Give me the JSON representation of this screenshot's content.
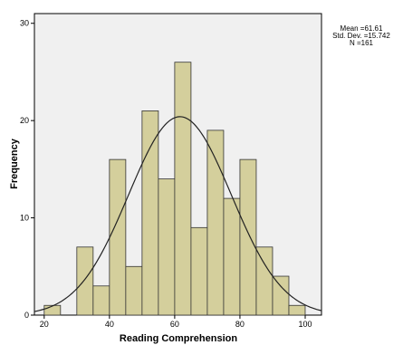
{
  "chart_data": {
    "type": "bar",
    "title": "",
    "xlabel": "Reading Comprehension",
    "ylabel": "Frequency",
    "xlim": [
      17,
      105
    ],
    "ylim": [
      0,
      31
    ],
    "x_ticks": [
      20,
      40,
      60,
      80,
      100
    ],
    "y_ticks": [
      0,
      10,
      20,
      30
    ],
    "bin_width": 5,
    "bins": [
      {
        "start": 20,
        "end": 25,
        "count": 1
      },
      {
        "start": 30,
        "end": 35,
        "count": 7
      },
      {
        "start": 35,
        "end": 40,
        "count": 3
      },
      {
        "start": 40,
        "end": 45,
        "count": 16
      },
      {
        "start": 45,
        "end": 50,
        "count": 5
      },
      {
        "start": 50,
        "end": 55,
        "count": 21
      },
      {
        "start": 55,
        "end": 60,
        "count": 14
      },
      {
        "start": 60,
        "end": 65,
        "count": 26
      },
      {
        "start": 65,
        "end": 70,
        "count": 9
      },
      {
        "start": 70,
        "end": 75,
        "count": 19
      },
      {
        "start": 75,
        "end": 80,
        "count": 12
      },
      {
        "start": 80,
        "end": 85,
        "count": 16
      },
      {
        "start": 85,
        "end": 90,
        "count": 7
      },
      {
        "start": 90,
        "end": 95,
        "count": 4
      },
      {
        "start": 95,
        "end": 100,
        "count": 1
      }
    ],
    "normal_curve": {
      "mean": 61.61,
      "sd": 15.742,
      "n": 161
    },
    "stats_lines": [
      "Mean =61.61",
      "Std. Dev. =15.742",
      "N =161"
    ],
    "grid": false,
    "colors": {
      "plot_background": "#f0f0f0",
      "bar_fill": "#d4cf9c",
      "bar_stroke": "#333333",
      "curve": "#222222"
    }
  }
}
